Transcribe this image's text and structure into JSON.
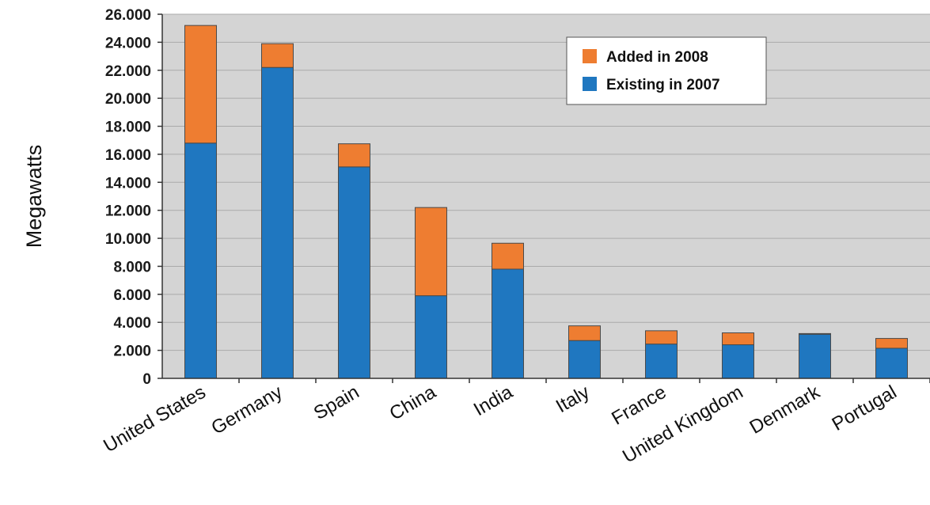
{
  "chart_data": {
    "type": "bar",
    "stacked": true,
    "categories": [
      "United States",
      "Germany",
      "Spain",
      "China",
      "India",
      "Italy",
      "France",
      "United Kingdom",
      "Denmark",
      "Portugal"
    ],
    "series": [
      {
        "name": "Existing in 2007",
        "color": "#1f77c0",
        "values": [
          16800,
          22200,
          15100,
          5900,
          7800,
          2700,
          2450,
          2400,
          3150,
          2150
        ]
      },
      {
        "name": "Added in 2008",
        "color": "#ee7d31",
        "values": [
          8400,
          1700,
          1650,
          6300,
          1850,
          1050,
          950,
          850,
          50,
          700
        ]
      }
    ],
    "y_ticks": [
      "0",
      "2.000",
      "4.000",
      "6.000",
      "8.000",
      "10.000",
      "12.000",
      "14.000",
      "16.000",
      "18.000",
      "20.000",
      "22.000",
      "24.000",
      "26.000"
    ],
    "ylim": [
      0,
      26000
    ],
    "ylabel": "Megawatts",
    "xlabel": "",
    "title": "",
    "grid": true,
    "legend_position": "top-right"
  }
}
